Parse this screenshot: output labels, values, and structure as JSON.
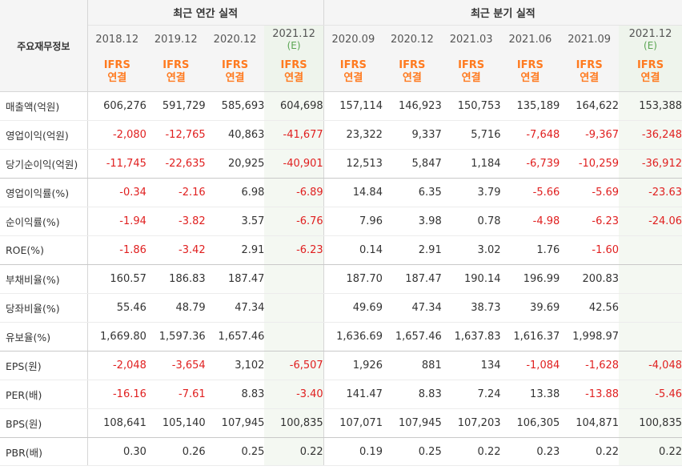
{
  "header": {
    "label": "주요재무정보",
    "annual_title": "최근 연간 실적",
    "quarter_title": "최근 분기 실적",
    "annual_periods": [
      {
        "date": "2018.12",
        "est": ""
      },
      {
        "date": "2019.12",
        "est": ""
      },
      {
        "date": "2020.12",
        "est": ""
      },
      {
        "date": "2021.12",
        "est": "(E)"
      }
    ],
    "quarter_periods": [
      {
        "date": "2020.09",
        "est": ""
      },
      {
        "date": "2020.12",
        "est": ""
      },
      {
        "date": "2021.03",
        "est": ""
      },
      {
        "date": "2021.06",
        "est": ""
      },
      {
        "date": "2021.09",
        "est": ""
      },
      {
        "date": "2021.12",
        "est": "(E)"
      }
    ],
    "ifrs_line1": "IFRS",
    "ifrs_line2": "연결"
  },
  "rows": [
    {
      "label": "매출액(억원)",
      "values": [
        "606,276",
        "591,729",
        "585,693",
        "604,698",
        "157,114",
        "146,923",
        "150,753",
        "135,189",
        "164,622",
        "153,388"
      ]
    },
    {
      "label": "영업이익(억원)",
      "values": [
        "-2,080",
        "-12,765",
        "40,863",
        "-41,677",
        "23,322",
        "9,337",
        "5,716",
        "-7,648",
        "-9,367",
        "-36,248"
      ]
    },
    {
      "label": "당기순이익(억원)",
      "values": [
        "-11,745",
        "-22,635",
        "20,925",
        "-40,901",
        "12,513",
        "5,847",
        "1,184",
        "-6,739",
        "-10,259",
        "-36,912"
      ]
    },
    {
      "label": "영업이익률(%)",
      "values": [
        "-0.34",
        "-2.16",
        "6.98",
        "-6.89",
        "14.84",
        "6.35",
        "3.79",
        "-5.66",
        "-5.69",
        "-23.63"
      ]
    },
    {
      "label": "순이익률(%)",
      "values": [
        "-1.94",
        "-3.82",
        "3.57",
        "-6.76",
        "7.96",
        "3.98",
        "0.78",
        "-4.98",
        "-6.23",
        "-24.06"
      ]
    },
    {
      "label": "ROE(%)",
      "values": [
        "-1.86",
        "-3.42",
        "2.91",
        "-6.23",
        "0.14",
        "2.91",
        "3.02",
        "1.76",
        "-1.60",
        ""
      ]
    },
    {
      "label": "부채비율(%)",
      "values": [
        "160.57",
        "186.83",
        "187.47",
        "",
        "187.70",
        "187.47",
        "190.14",
        "196.99",
        "200.83",
        ""
      ]
    },
    {
      "label": "당좌비율(%)",
      "values": [
        "55.46",
        "48.79",
        "47.34",
        "",
        "49.69",
        "47.34",
        "38.73",
        "39.69",
        "42.56",
        ""
      ]
    },
    {
      "label": "유보율(%)",
      "values": [
        "1,669.80",
        "1,597.36",
        "1,657.46",
        "",
        "1,636.69",
        "1,657.46",
        "1,637.83",
        "1,616.37",
        "1,998.97",
        ""
      ]
    },
    {
      "label": "EPS(원)",
      "values": [
        "-2,048",
        "-3,654",
        "3,102",
        "-6,507",
        "1,926",
        "881",
        "134",
        "-1,084",
        "-1,628",
        "-4,048"
      ]
    },
    {
      "label": "PER(배)",
      "values": [
        "-16.16",
        "-7.61",
        "8.83",
        "-3.40",
        "141.47",
        "8.83",
        "7.24",
        "13.38",
        "-13.88",
        "-5.46"
      ]
    },
    {
      "label": "BPS(원)",
      "values": [
        "108,641",
        "105,140",
        "107,945",
        "100,835",
        "107,071",
        "107,945",
        "107,203",
        "106,305",
        "104,871",
        "100,835"
      ]
    },
    {
      "label": "PBR(배)",
      "values": [
        "0.30",
        "0.26",
        "0.25",
        "0.22",
        "0.19",
        "0.25",
        "0.22",
        "0.23",
        "0.22",
        "0.22"
      ]
    }
  ],
  "colors": {
    "negative": "#e02020",
    "ifrs": "#ff7a1f",
    "estimate": "#5aa552",
    "header_bg": "#f5f5f5"
  }
}
